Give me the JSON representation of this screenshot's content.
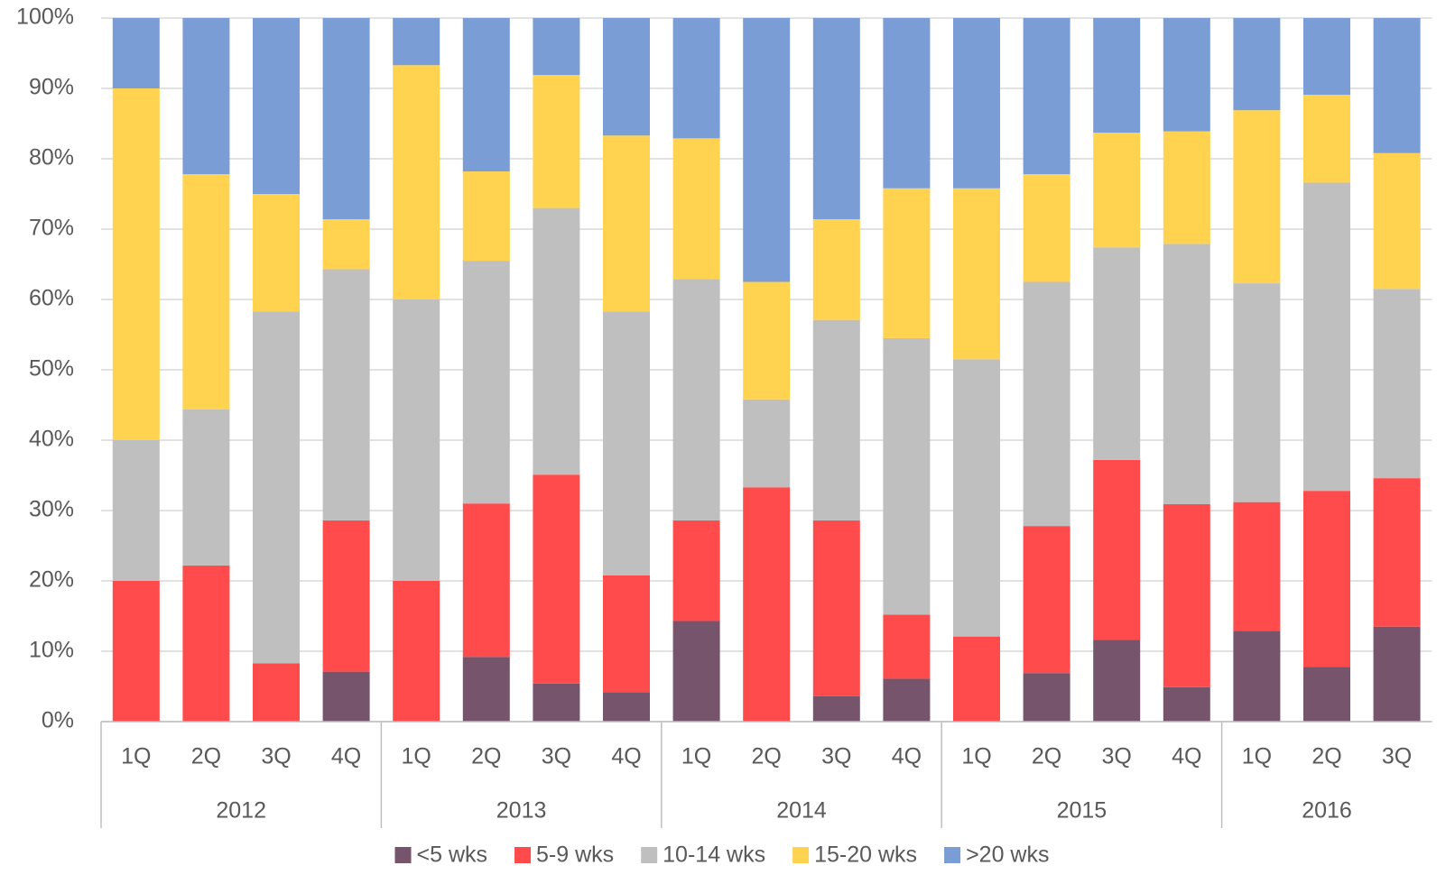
{
  "chart_data": {
    "type": "stacked_bar_100",
    "categories": [
      "1Q",
      "2Q",
      "3Q",
      "4Q",
      "1Q",
      "2Q",
      "3Q",
      "4Q",
      "1Q",
      "2Q",
      "3Q",
      "4Q",
      "1Q",
      "2Q",
      "3Q",
      "4Q",
      "1Q",
      "2Q",
      "3Q"
    ],
    "category_groups": [
      {
        "name": "2012",
        "categories": [
          "1Q",
          "2Q",
          "3Q",
          "4Q"
        ]
      },
      {
        "name": "2013",
        "categories": [
          "1Q",
          "2Q",
          "3Q",
          "4Q"
        ]
      },
      {
        "name": "2014",
        "categories": [
          "1Q",
          "2Q",
          "3Q",
          "4Q"
        ]
      },
      {
        "name": "2015",
        "categories": [
          "1Q",
          "2Q",
          "3Q",
          "4Q"
        ]
      },
      {
        "name": "2016",
        "categories": [
          "1Q",
          "2Q",
          "3Q"
        ]
      }
    ],
    "series": [
      {
        "name": "<5 wks",
        "color": "#75546c",
        "values": [
          0,
          0,
          0,
          7.1,
          0,
          9.2,
          5.4,
          4.2,
          14.3,
          0,
          3.6,
          6.1,
          0,
          6.9,
          11.6,
          4.9,
          12.9,
          7.8,
          13.5
        ]
      },
      {
        "name": "5-9 wks",
        "color": "#ff4b4b",
        "values": [
          20,
          22.2,
          8.3,
          21.5,
          20,
          21.8,
          29.7,
          16.6,
          14.3,
          33.3,
          25,
          9.1,
          12.1,
          20.9,
          25.6,
          26,
          18.3,
          25,
          21.1
        ]
      },
      {
        "name": "10-14 wks",
        "color": "#bfbfbf",
        "values": [
          20,
          22.2,
          50,
          35.7,
          40,
          34.5,
          37.9,
          37.5,
          34.3,
          12.5,
          28.5,
          39.3,
          39.4,
          34.7,
          30.2,
          37,
          31.1,
          43.8,
          26.9
        ]
      },
      {
        "name": "15-20 wks",
        "color": "#ffd34f",
        "values": [
          50,
          33.4,
          16.7,
          7.1,
          33.3,
          12.7,
          18.9,
          25,
          20,
          16.7,
          14.3,
          21.3,
          24.3,
          15.3,
          16.3,
          16,
          24.6,
          12.5,
          19.3
        ]
      },
      {
        "name": ">20 wks",
        "color": "#7b9dd6",
        "values": [
          10,
          22.2,
          25,
          28.6,
          6.7,
          21.8,
          8.1,
          16.7,
          17.1,
          37.5,
          28.6,
          24.2,
          24.2,
          22.2,
          16.3,
          16.1,
          13.1,
          10.9,
          19.2
        ]
      }
    ],
    "ylim": [
      0,
      100
    ],
    "yticks": [
      {
        "value": 0,
        "label": "0%"
      },
      {
        "value": 10,
        "label": "10%"
      },
      {
        "value": 20,
        "label": "20%"
      },
      {
        "value": 30,
        "label": "30%"
      },
      {
        "value": 40,
        "label": "40%"
      },
      {
        "value": 50,
        "label": "50%"
      },
      {
        "value": 60,
        "label": "60%"
      },
      {
        "value": 70,
        "label": "70%"
      },
      {
        "value": 80,
        "label": "80%"
      },
      {
        "value": 90,
        "label": "90%"
      },
      {
        "value": 100,
        "label": "100%"
      }
    ],
    "grid": true,
    "legend": "bottom"
  }
}
